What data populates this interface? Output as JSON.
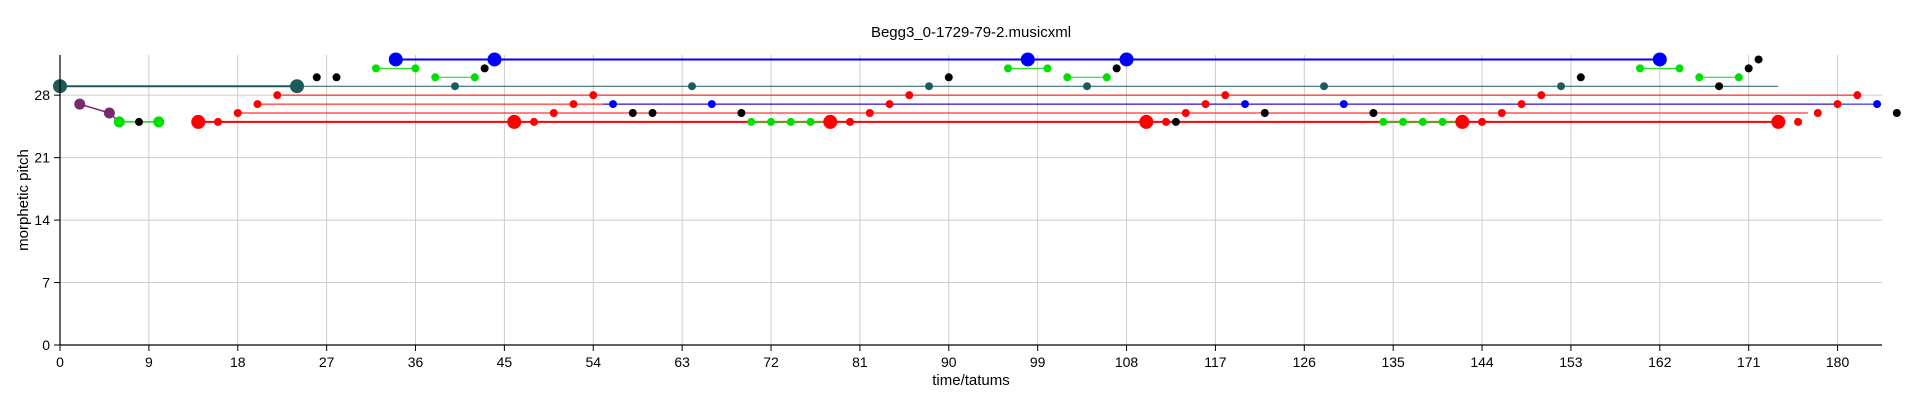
{
  "chart_data": {
    "type": "scatter",
    "title": "Begg3_0-1729-79-2.musicxml",
    "xlabel": "time/tatums",
    "ylabel": "morphetic pitch",
    "xlim": [
      0,
      184.5
    ],
    "ylim": [
      0,
      32.5
    ],
    "xticks": [
      0,
      9,
      18,
      27,
      36,
      45,
      54,
      63,
      72,
      81,
      90,
      99,
      108,
      117,
      126,
      135,
      144,
      153,
      162,
      171,
      180
    ],
    "yticks": [
      0,
      7,
      14,
      21,
      28
    ],
    "grid": true,
    "colors": {
      "red": "#ff0000",
      "blue": "#0000ff",
      "green": "#00e000",
      "teal": "#1f5a5a",
      "purple": "#7a2a6a",
      "black": "#000000",
      "grid": "#cccccc"
    },
    "segments": [
      {
        "x1": 0,
        "x2": 24,
        "y": 29,
        "color": "teal",
        "width": 2
      },
      {
        "x1": 2,
        "x2": 5,
        "y1": 27,
        "y2": 26,
        "color": "purple",
        "width": 1.5
      },
      {
        "x1": 5,
        "x2": 6,
        "y1": 26,
        "y2": 25,
        "color": "purple",
        "width": 1.5
      },
      {
        "x1": 6,
        "x2": 10,
        "y": 25,
        "color": "green",
        "width": 1.5
      },
      {
        "x1": 14,
        "x2": 174,
        "y": 25,
        "color": "red",
        "width": 2
      },
      {
        "x1": 18,
        "x2": 177,
        "y": 26,
        "color": "red",
        "width": 1
      },
      {
        "x1": 20,
        "x2": 180,
        "y": 27,
        "color": "red",
        "width": 1
      },
      {
        "x1": 22,
        "x2": 182,
        "y": 28,
        "color": "red",
        "width": 1
      },
      {
        "x1": 24,
        "x2": 174,
        "y": 29,
        "color": "teal",
        "width": 1
      },
      {
        "x1": 34,
        "x2": 162,
        "y": 32,
        "color": "blue",
        "width": 2
      },
      {
        "x1": 55,
        "x2": 184,
        "y": 27,
        "color": "blue",
        "width": 1
      },
      {
        "x1": 32,
        "x2": 36,
        "y": 31,
        "color": "green",
        "width": 1
      },
      {
        "x1": 38,
        "x2": 42,
        "y": 30,
        "color": "green",
        "width": 1
      },
      {
        "x1": 96,
        "x2": 100,
        "y": 31,
        "color": "green",
        "width": 1
      },
      {
        "x1": 102,
        "x2": 106,
        "y": 30,
        "color": "green",
        "width": 1
      },
      {
        "x1": 160,
        "x2": 164,
        "y": 31,
        "color": "green",
        "width": 1
      },
      {
        "x1": 166,
        "x2": 170,
        "y": 30,
        "color": "green",
        "width": 1
      },
      {
        "x1": 70,
        "x2": 78,
        "y": 25,
        "color": "green",
        "width": 1.5
      },
      {
        "x1": 134,
        "x2": 142,
        "y": 25,
        "color": "green",
        "width": 1.5
      }
    ],
    "points": [
      {
        "x": 0,
        "y": 29,
        "color": "teal",
        "size": "large"
      },
      {
        "x": 2,
        "y": 27,
        "color": "purple",
        "size": "medium"
      },
      {
        "x": 5,
        "y": 26,
        "color": "purple",
        "size": "medium"
      },
      {
        "x": 6,
        "y": 25,
        "color": "green",
        "size": "medium"
      },
      {
        "x": 8,
        "y": 25,
        "color": "black",
        "size": "small"
      },
      {
        "x": 10,
        "y": 25,
        "color": "green",
        "size": "medium"
      },
      {
        "x": 14,
        "y": 25,
        "color": "red",
        "size": "large"
      },
      {
        "x": 16,
        "y": 25,
        "color": "red",
        "size": "small"
      },
      {
        "x": 18,
        "y": 26,
        "color": "red",
        "size": "small"
      },
      {
        "x": 20,
        "y": 27,
        "color": "red",
        "size": "small"
      },
      {
        "x": 22,
        "y": 28,
        "color": "red",
        "size": "small"
      },
      {
        "x": 24,
        "y": 29,
        "color": "teal",
        "size": "large"
      },
      {
        "x": 26,
        "y": 30,
        "color": "black",
        "size": "small"
      },
      {
        "x": 28,
        "y": 30,
        "color": "black",
        "size": "small"
      },
      {
        "x": 32,
        "y": 31,
        "color": "green",
        "size": "small"
      },
      {
        "x": 34,
        "y": 32,
        "color": "blue",
        "size": "large"
      },
      {
        "x": 36,
        "y": 31,
        "color": "green",
        "size": "small"
      },
      {
        "x": 38,
        "y": 30,
        "color": "green",
        "size": "small"
      },
      {
        "x": 40,
        "y": 29,
        "color": "teal",
        "size": "small"
      },
      {
        "x": 42,
        "y": 30,
        "color": "green",
        "size": "small"
      },
      {
        "x": 43,
        "y": 31,
        "color": "black",
        "size": "small"
      },
      {
        "x": 44,
        "y": 32,
        "color": "blue",
        "size": "large"
      },
      {
        "x": 46,
        "y": 25,
        "color": "red",
        "size": "large"
      },
      {
        "x": 48,
        "y": 25,
        "color": "red",
        "size": "small"
      },
      {
        "x": 50,
        "y": 26,
        "color": "red",
        "size": "small"
      },
      {
        "x": 52,
        "y": 27,
        "color": "red",
        "size": "small"
      },
      {
        "x": 54,
        "y": 28,
        "color": "red",
        "size": "small"
      },
      {
        "x": 56,
        "y": 27,
        "color": "blue",
        "size": "small"
      },
      {
        "x": 58,
        "y": 26,
        "color": "black",
        "size": "small"
      },
      {
        "x": 60,
        "y": 26,
        "color": "black",
        "size": "small"
      },
      {
        "x": 64,
        "y": 29,
        "color": "teal",
        "size": "small"
      },
      {
        "x": 66,
        "y": 27,
        "color": "blue",
        "size": "small"
      },
      {
        "x": 69,
        "y": 26,
        "color": "black",
        "size": "small"
      },
      {
        "x": 70,
        "y": 25,
        "color": "green",
        "size": "small"
      },
      {
        "x": 72,
        "y": 25,
        "color": "green",
        "size": "small"
      },
      {
        "x": 74,
        "y": 25,
        "color": "green",
        "size": "small"
      },
      {
        "x": 76,
        "y": 25,
        "color": "green",
        "size": "small"
      },
      {
        "x": 78,
        "y": 25,
        "color": "red",
        "size": "large"
      },
      {
        "x": 80,
        "y": 25,
        "color": "red",
        "size": "small"
      },
      {
        "x": 82,
        "y": 26,
        "color": "red",
        "size": "small"
      },
      {
        "x": 84,
        "y": 27,
        "color": "red",
        "size": "small"
      },
      {
        "x": 86,
        "y": 28,
        "color": "red",
        "size": "small"
      },
      {
        "x": 88,
        "y": 29,
        "color": "teal",
        "size": "small"
      },
      {
        "x": 90,
        "y": 30,
        "color": "black",
        "size": "small"
      },
      {
        "x": 96,
        "y": 31,
        "color": "green",
        "size": "small"
      },
      {
        "x": 98,
        "y": 32,
        "color": "blue",
        "size": "large"
      },
      {
        "x": 100,
        "y": 31,
        "color": "green",
        "size": "small"
      },
      {
        "x": 102,
        "y": 30,
        "color": "green",
        "size": "small"
      },
      {
        "x": 104,
        "y": 29,
        "color": "teal",
        "size": "small"
      },
      {
        "x": 106,
        "y": 30,
        "color": "green",
        "size": "small"
      },
      {
        "x": 107,
        "y": 31,
        "color": "black",
        "size": "small"
      },
      {
        "x": 108,
        "y": 32,
        "color": "blue",
        "size": "large"
      },
      {
        "x": 110,
        "y": 25,
        "color": "red",
        "size": "large"
      },
      {
        "x": 112,
        "y": 25,
        "color": "red",
        "size": "small"
      },
      {
        "x": 113,
        "y": 25,
        "color": "black",
        "size": "small"
      },
      {
        "x": 114,
        "y": 26,
        "color": "red",
        "size": "small"
      },
      {
        "x": 116,
        "y": 27,
        "color": "red",
        "size": "small"
      },
      {
        "x": 118,
        "y": 28,
        "color": "red",
        "size": "small"
      },
      {
        "x": 120,
        "y": 27,
        "color": "blue",
        "size": "small"
      },
      {
        "x": 122,
        "y": 26,
        "color": "black",
        "size": "small"
      },
      {
        "x": 128,
        "y": 29,
        "color": "teal",
        "size": "small"
      },
      {
        "x": 130,
        "y": 27,
        "color": "blue",
        "size": "small"
      },
      {
        "x": 133,
        "y": 26,
        "color": "black",
        "size": "small"
      },
      {
        "x": 134,
        "y": 25,
        "color": "green",
        "size": "small"
      },
      {
        "x": 136,
        "y": 25,
        "color": "green",
        "size": "small"
      },
      {
        "x": 138,
        "y": 25,
        "color": "green",
        "size": "small"
      },
      {
        "x": 140,
        "y": 25,
        "color": "green",
        "size": "small"
      },
      {
        "x": 142,
        "y": 25,
        "color": "red",
        "size": "large"
      },
      {
        "x": 144,
        "y": 25,
        "color": "red",
        "size": "small"
      },
      {
        "x": 146,
        "y": 26,
        "color": "red",
        "size": "small"
      },
      {
        "x": 148,
        "y": 27,
        "color": "red",
        "size": "small"
      },
      {
        "x": 150,
        "y": 28,
        "color": "red",
        "size": "small"
      },
      {
        "x": 152,
        "y": 29,
        "color": "teal",
        "size": "small"
      },
      {
        "x": 154,
        "y": 30,
        "color": "black",
        "size": "small"
      },
      {
        "x": 160,
        "y": 31,
        "color": "green",
        "size": "small"
      },
      {
        "x": 162,
        "y": 32,
        "color": "blue",
        "size": "large"
      },
      {
        "x": 164,
        "y": 31,
        "color": "green",
        "size": "small"
      },
      {
        "x": 166,
        "y": 30,
        "color": "green",
        "size": "small"
      },
      {
        "x": 168,
        "y": 29,
        "color": "black",
        "size": "small"
      },
      {
        "x": 170,
        "y": 30,
        "color": "green",
        "size": "small"
      },
      {
        "x": 171,
        "y": 31,
        "color": "black",
        "size": "small"
      },
      {
        "x": 172,
        "y": 32,
        "color": "black",
        "size": "small"
      },
      {
        "x": 174,
        "y": 25,
        "color": "red",
        "size": "large"
      },
      {
        "x": 176,
        "y": 25,
        "color": "red",
        "size": "small"
      },
      {
        "x": 178,
        "y": 26,
        "color": "red",
        "size": "small"
      },
      {
        "x": 180,
        "y": 27,
        "color": "red",
        "size": "small"
      },
      {
        "x": 182,
        "y": 28,
        "color": "red",
        "size": "small"
      },
      {
        "x": 184,
        "y": 27,
        "color": "blue",
        "size": "small"
      },
      {
        "x": 186,
        "y": 26,
        "color": "black",
        "size": "small"
      }
    ]
  }
}
